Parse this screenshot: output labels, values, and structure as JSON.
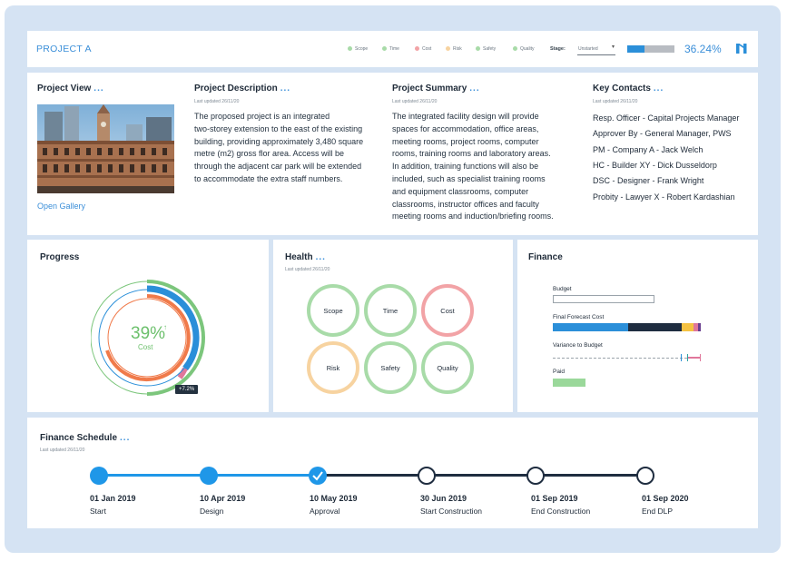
{
  "header": {
    "project_name": "PROJECT A",
    "legend": [
      {
        "label": "Scope",
        "color": "#a8dba8"
      },
      {
        "label": "Time",
        "color": "#a8dba8"
      },
      {
        "label": "Cost",
        "color": "#f2a3a6"
      },
      {
        "label": "Risk",
        "color": "#f7d3a0"
      },
      {
        "label": "Safety",
        "color": "#a8dba8"
      },
      {
        "label": "Quality",
        "color": "#a8dba8"
      }
    ],
    "stage_label": "Stage:",
    "stage_value": "Unstarted",
    "progress_fraction": 0.3624,
    "progress_text": "36.24%"
  },
  "project_view": {
    "title": "Project View",
    "dots": "...",
    "gallery_link": "Open Gallery"
  },
  "project_description": {
    "title": "Project Description",
    "dots": "...",
    "updated": "Last updated 26/11/20",
    "lines": [
      "The proposed project is an integrated",
      "two-storey extension to the east of the existing",
      "building, providing approximately 3,480 square",
      "metre (m2) gross flor area. Access will be",
      "through the adjacent car park will be extended",
      "to accommodate the extra staff numbers."
    ]
  },
  "project_summary": {
    "title": "Project Summary",
    "dots": "...",
    "updated": "Last updated 26/11/20",
    "lines": [
      "The integrated facility design will provide",
      "spaces for accommodation, office areas,",
      "meeting rooms, project rooms, computer",
      "rooms, training rooms and laboratory areas.",
      "In addition, training functions will also be",
      "included, such as specialist training rooms",
      "and equipment classrooms, computer",
      "classrooms, instructor offices and faculty",
      "meeting rooms and induction/briefing rooms."
    ]
  },
  "key_contacts": {
    "title": "Key Contacts",
    "dots": "...",
    "updated": "Last updated 26/11/20",
    "items": [
      "Resp. Officer - Capital Projects Manager",
      "Approver By - General Manager, PWS",
      "PM - Company A - Jack Welch",
      "HC - Builder XY - Dick Dusseldorp",
      "DSC - Designer - Frank Wright",
      "Probity - Lawyer X - Robert Kardashian"
    ]
  },
  "progress": {
    "title": "Progress",
    "percent_text": "39%",
    "percent_value": 39,
    "arrow": "↑",
    "metric": "Cost",
    "badge": "+7.2%"
  },
  "health": {
    "title": "Health",
    "dots": "...",
    "updated": "Last updated 26/11/20",
    "items": [
      {
        "label": "Scope",
        "color": "#a8dba8"
      },
      {
        "label": "Time",
        "color": "#a8dba8"
      },
      {
        "label": "Cost",
        "color": "#f2a3a6"
      },
      {
        "label": "Risk",
        "color": "#f7d3a0"
      },
      {
        "label": "Safety",
        "color": "#a8dba8"
      },
      {
        "label": "Quality",
        "color": "#a8dba8"
      }
    ]
  },
  "finance": {
    "title": "Finance",
    "budget_label": "Budget",
    "forecast_label": "Final Forecast Cost",
    "variance_label": "Variance to Budget",
    "paid_label": "Paid",
    "forecast_segments": [
      {
        "fraction": 0.51,
        "color": "#2b8fd9"
      },
      {
        "fraction": 0.36,
        "color": "#1f2d40"
      },
      {
        "fraction": 0.08,
        "color": "#f5c242"
      },
      {
        "fraction": 0.03,
        "color": "#e0779b"
      },
      {
        "fraction": 0.02,
        "color": "#6a3f8f"
      }
    ]
  },
  "schedule": {
    "title": "Finance Schedule",
    "dots": "...",
    "updated": "Last updated 26/11/20",
    "milestones": [
      {
        "date": "01 Jan 2019",
        "label": "Start",
        "state": "done"
      },
      {
        "date": "10 Apr 2019",
        "label": "Design",
        "state": "done"
      },
      {
        "date": "10 May 2019",
        "label": "Approval",
        "state": "current"
      },
      {
        "date": "30 Jun 2019",
        "label": "Start Construction",
        "state": "pending"
      },
      {
        "date": "01 Sep 2019",
        "label": "End Construction",
        "state": "pending"
      },
      {
        "date": "01 Sep 2020",
        "label": "End DLP",
        "state": "pending"
      }
    ]
  }
}
